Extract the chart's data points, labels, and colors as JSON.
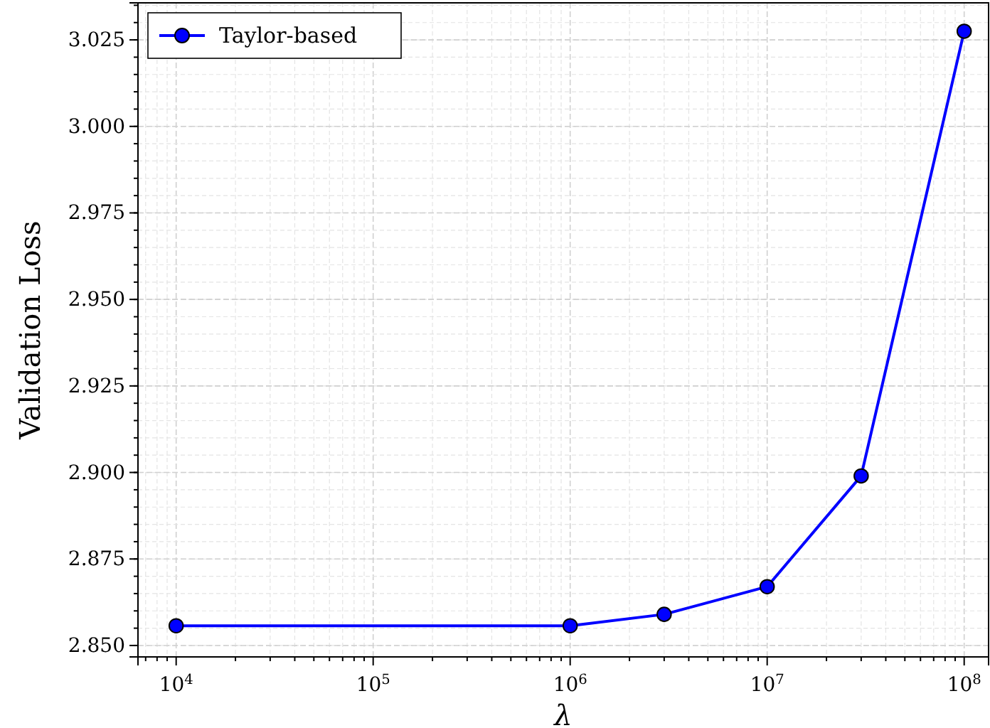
{
  "chart_data": {
    "type": "line",
    "xlabel": "λ",
    "ylabel": "Validation Loss",
    "x": [
      10000,
      1000000,
      3000000,
      10000000,
      30000000,
      100000000
    ],
    "series": [
      {
        "name": "Taylor-based",
        "color": "#0000ff",
        "values": [
          2.8557,
          2.8557,
          2.859,
          2.867,
          2.899,
          3.0275
        ]
      }
    ],
    "xlim": [
      6400,
      133000000
    ],
    "ylim": [
      2.8467,
      3.0357
    ],
    "xticks": [
      {
        "value": 10000,
        "label": "10$^{4}$"
      },
      {
        "value": 100000,
        "label": "10$^{5}$"
      },
      {
        "value": 1000000,
        "label": "10$^{6}$"
      },
      {
        "value": 10000000,
        "label": "10$^{7}$"
      },
      {
        "value": 100000000,
        "label": "10$^{8}$"
      }
    ],
    "yticks": [
      {
        "value": 2.85,
        "label": "2.850"
      },
      {
        "value": 2.875,
        "label": "2.875"
      },
      {
        "value": 2.9,
        "label": "2.900"
      },
      {
        "value": 2.925,
        "label": "2.925"
      },
      {
        "value": 2.95,
        "label": "2.950"
      },
      {
        "value": 2.975,
        "label": "2.975"
      },
      {
        "value": 3.0,
        "label": "3.000"
      },
      {
        "value": 3.025,
        "label": "3.025"
      }
    ],
    "log": "x",
    "grid": true,
    "legend": "top left",
    "marker": "circle",
    "line_style": "solid"
  }
}
